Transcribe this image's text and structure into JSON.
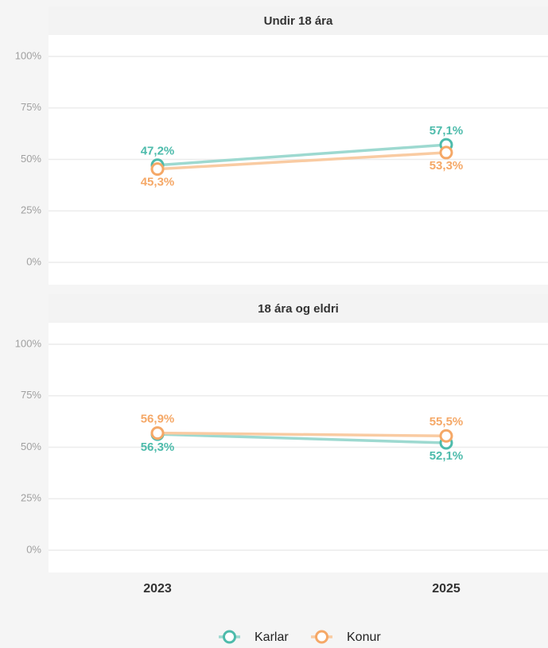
{
  "chart_data": [
    {
      "type": "line",
      "title": "Undir 18 ára",
      "categories": [
        "2023",
        "2025"
      ],
      "series": [
        {
          "name": "Karlar",
          "color": "#4dbbab",
          "values": [
            47.2,
            57.1
          ],
          "value_labels": [
            "47,2%",
            "57,1%"
          ]
        },
        {
          "name": "Konur",
          "color": "#f5a867",
          "values": [
            45.3,
            53.3
          ],
          "value_labels": [
            "45,3%",
            "53,3%"
          ]
        }
      ],
      "ylim": [
        -10.8,
        110.4
      ],
      "yticks": [
        {
          "value": 0,
          "label": "0%"
        },
        {
          "value": 25,
          "label": "25%"
        },
        {
          "value": 50,
          "label": "50%"
        },
        {
          "value": 75,
          "label": "75%"
        },
        {
          "value": 100,
          "label": "100%"
        }
      ],
      "grid": true
    },
    {
      "type": "line",
      "title": "18 ára og eldri",
      "categories": [
        "2023",
        "2025"
      ],
      "series": [
        {
          "name": "Karlar",
          "color": "#4dbbab",
          "values": [
            56.3,
            52.1
          ],
          "value_labels": [
            "56,3%",
            "52,1%"
          ]
        },
        {
          "name": "Konur",
          "color": "#f5a867",
          "values": [
            56.9,
            55.5
          ],
          "value_labels": [
            "56,9%",
            "55,5%"
          ]
        }
      ],
      "ylim": [
        -10.8,
        110.4
      ],
      "yticks": [
        {
          "value": 0,
          "label": "0%"
        },
        {
          "value": 25,
          "label": "25%"
        },
        {
          "value": 50,
          "label": "50%"
        },
        {
          "value": 75,
          "label": "75%"
        },
        {
          "value": 100,
          "label": "100%"
        }
      ],
      "grid": true
    }
  ]
}
